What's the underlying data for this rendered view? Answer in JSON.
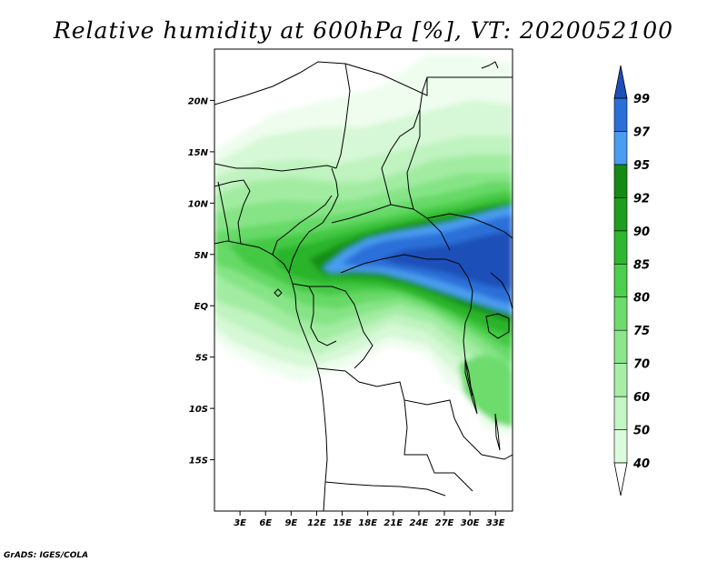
{
  "title": "Relative humidity at 600hPa [%], VT: 2020052100",
  "credit": "GrADS: IGES/COLA",
  "map": {
    "projection": "latlon",
    "lon_range": [
      0,
      35
    ],
    "lat_range": [
      -20,
      25
    ],
    "lon_ticks": [
      "3E",
      "6E",
      "9E",
      "12E",
      "15E",
      "18E",
      "21E",
      "24E",
      "27E",
      "30E",
      "33E"
    ],
    "lon_tick_values": [
      3,
      6,
      9,
      12,
      15,
      18,
      21,
      24,
      27,
      30,
      33
    ],
    "lat_ticks": [
      "20N",
      "15N",
      "10N",
      "5N",
      "EQ",
      "5S",
      "10S",
      "15S"
    ],
    "lat_tick_values": [
      20,
      15,
      10,
      5,
      0,
      -5,
      -10,
      -15
    ]
  },
  "colorbar": {
    "levels": [
      "40",
      "50",
      "60",
      "70",
      "75",
      "80",
      "85",
      "90",
      "92",
      "95",
      "97",
      "99"
    ],
    "colors": [
      "#f5fff5",
      "#dcfadc",
      "#c4f5c4",
      "#a8eea8",
      "#8ce68c",
      "#6ddc6d",
      "#4ccf4c",
      "#2fb82f",
      "#1e9e1e",
      "#148a14",
      "#4a9cf0",
      "#2a6fd8",
      "#1c4fb8"
    ],
    "under_color": "#ffffff",
    "over_color": "#1c4fb8"
  },
  "colors": {
    "coast": "#000000",
    "background": "#ffffff"
  }
}
